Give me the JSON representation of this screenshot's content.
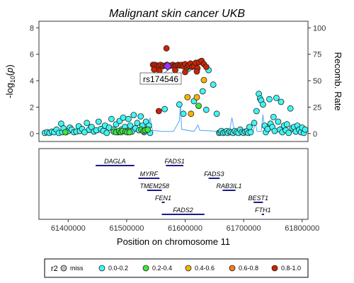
{
  "chart_data": {
    "type": "scatter",
    "title": "Malignant skin cancer UKB",
    "ylabel_left": "-log10(p)",
    "ylabel_right": "Recomb. Rate",
    "xlabel": "Position on chromosome 11",
    "xlim": [
      61350000,
      61810000
    ],
    "ylim_left": [
      -0.6,
      8.5
    ],
    "ylim_right": [
      -7.5,
      106.25
    ],
    "x_ticks": [
      61400000,
      61500000,
      61600000,
      61700000,
      61800000
    ],
    "x_tick_labels": [
      "61400000",
      "61500000",
      "61600000",
      "61700000",
      "61800000"
    ],
    "y_ticks_left": [
      0,
      2,
      4,
      6,
      8
    ],
    "y_ticks_right": [
      0,
      25,
      50,
      75,
      100
    ],
    "lead_snp": {
      "label": "rs174546",
      "x": 61570000,
      "y": 5.1,
      "color": "#9b30ff"
    },
    "legend": {
      "title": "r2",
      "items": [
        {
          "label": "miss",
          "color": "#bebebe"
        },
        {
          "label": "0.0-0.2",
          "color": "#3ff7f4"
        },
        {
          "label": "0.2-0.4",
          "color": "#3fe63f"
        },
        {
          "label": "0.4-0.6",
          "color": "#f7b500"
        },
        {
          "label": "0.6-0.8",
          "color": "#f37d1f"
        },
        {
          "label": "0.8-1.0",
          "color": "#cc2200"
        }
      ]
    },
    "recomb_rate": [
      [
        61355000,
        0.3
      ],
      [
        61400000,
        0.5
      ],
      [
        61450000,
        0.8
      ],
      [
        61500000,
        1.2
      ],
      [
        61536000,
        3.0
      ],
      [
        61540000,
        15.0
      ],
      [
        61544000,
        3.0
      ],
      [
        61560000,
        2.0
      ],
      [
        61580000,
        2.0
      ],
      [
        61590000,
        12.0
      ],
      [
        61592000,
        28.0
      ],
      [
        61594000,
        4.0
      ],
      [
        61615000,
        2.0
      ],
      [
        61622000,
        8.0
      ],
      [
        61625000,
        3.0
      ],
      [
        61660000,
        2.0
      ],
      [
        61676000,
        3.0
      ],
      [
        61680000,
        15.0
      ],
      [
        61684000,
        3.0
      ],
      [
        61700000,
        1.0
      ],
      [
        61716000,
        2.0
      ],
      [
        61720000,
        10.0
      ],
      [
        61723000,
        2.0
      ],
      [
        61730000,
        2.0
      ],
      [
        61733000,
        18.0
      ],
      [
        61736000,
        2.0
      ],
      [
        61745000,
        2.0
      ],
      [
        61748000,
        8.0
      ],
      [
        61752000,
        2.0
      ],
      [
        61805000,
        1.0
      ]
    ],
    "points": {
      "low_r2": [
        [
          61360000,
          0.05
        ],
        [
          61364000,
          0.1
        ],
        [
          61368000,
          0.05
        ],
        [
          61372000,
          0.15
        ],
        [
          61376000,
          0.1
        ],
        [
          61380000,
          0.3
        ],
        [
          61384000,
          0.05
        ],
        [
          61388000,
          0.75
        ],
        [
          61390000,
          0.1
        ],
        [
          61392000,
          0.4
        ],
        [
          61396000,
          0.1
        ],
        [
          61400000,
          0.2
        ],
        [
          61403000,
          0.45
        ],
        [
          61406000,
          0.3
        ],
        [
          61410000,
          0.1
        ],
        [
          61414000,
          0.15
        ],
        [
          61418000,
          0.55
        ],
        [
          61420000,
          0.2
        ],
        [
          61424000,
          0.35
        ],
        [
          61428000,
          0.1
        ],
        [
          61432000,
          0.8
        ],
        [
          61436000,
          0.3
        ],
        [
          61440000,
          0.5
        ],
        [
          61444000,
          0.15
        ],
        [
          61448000,
          0.25
        ],
        [
          61452000,
          0.9
        ],
        [
          61456000,
          0.35
        ],
        [
          61460000,
          0.2
        ],
        [
          61463000,
          0.6
        ],
        [
          61466000,
          0.05
        ],
        [
          61470000,
          0.45
        ],
        [
          61474000,
          1.1
        ],
        [
          61478000,
          0.3
        ],
        [
          61482000,
          0.7
        ],
        [
          61485000,
          0.1
        ],
        [
          61488000,
          0.95
        ],
        [
          61491000,
          0.3
        ],
        [
          61494000,
          1.2
        ],
        [
          61497000,
          0.5
        ],
        [
          61500000,
          0.2
        ],
        [
          61503000,
          1.1
        ],
        [
          61506000,
          0.6
        ],
        [
          61509000,
          0.15
        ],
        [
          61512000,
          1.4
        ],
        [
          61515000,
          0.4
        ],
        [
          61518000,
          0.8
        ],
        [
          61521000,
          0.25
        ],
        [
          61524000,
          1.3
        ],
        [
          61527000,
          0.6
        ],
        [
          61530000,
          0.1
        ],
        [
          61533000,
          0.9
        ],
        [
          61536000,
          0.35
        ],
        [
          61538000,
          0.6
        ],
        [
          61540000,
          0.05
        ],
        [
          61565000,
          1.85
        ],
        [
          61590000,
          2.2
        ],
        [
          61597000,
          1.5
        ],
        [
          61605000,
          4.9
        ],
        [
          61615000,
          2.45
        ],
        [
          61630000,
          3.2
        ],
        [
          61636000,
          1.8
        ],
        [
          61640000,
          4.8
        ],
        [
          61648000,
          3.7
        ],
        [
          61654000,
          1.5
        ],
        [
          61658000,
          0.05
        ],
        [
          61660000,
          0.1
        ],
        [
          61662000,
          0.2
        ],
        [
          61665000,
          0.05
        ],
        [
          61668000,
          0.1
        ],
        [
          61671000,
          0.2
        ],
        [
          61673000,
          0.05
        ],
        [
          61676000,
          0.15
        ],
        [
          61679000,
          0.1
        ],
        [
          61682000,
          0.05
        ],
        [
          61685000,
          0.2
        ],
        [
          61688000,
          0.1
        ],
        [
          61691000,
          0.05
        ],
        [
          61694000,
          0.3
        ],
        [
          61697000,
          0.1
        ],
        [
          61700000,
          0.05
        ],
        [
          61703000,
          0.15
        ],
        [
          61706000,
          0.2
        ],
        [
          61708000,
          0.05
        ],
        [
          61710000,
          0.5
        ],
        [
          61712000,
          0.1
        ],
        [
          61718000,
          0.8
        ],
        [
          61722000,
          1.7
        ],
        [
          61726000,
          3.0
        ],
        [
          61728000,
          2.65
        ],
        [
          61730000,
          2.5
        ],
        [
          61733000,
          2.2
        ],
        [
          61736000,
          0.6
        ],
        [
          61738000,
          0.1
        ],
        [
          61741000,
          0.35
        ],
        [
          61744000,
          2.6
        ],
        [
          61746000,
          0.75
        ],
        [
          61749000,
          0.5
        ],
        [
          61751000,
          1.25
        ],
        [
          61753000,
          0.2
        ],
        [
          61756000,
          2.7
        ],
        [
          61759000,
          0.9
        ],
        [
          61762000,
          0.3
        ],
        [
          61764000,
          2.4
        ],
        [
          61766000,
          0.1
        ],
        [
          61769000,
          0.6
        ],
        [
          61772000,
          0.25
        ],
        [
          61774000,
          0.7
        ],
        [
          61777000,
          0.05
        ],
        [
          61780000,
          1.9
        ],
        [
          61783000,
          0.4
        ],
        [
          61786000,
          0.5
        ],
        [
          61789000,
          0.15
        ],
        [
          61792000,
          0.6
        ],
        [
          61795000,
          0.3
        ],
        [
          61798000,
          0.1
        ],
        [
          61800000,
          0.45
        ],
        [
          61803000,
          0.05
        ],
        [
          61805000,
          0.3
        ]
      ],
      "mid_r2": [
        [
          61395000,
          0.1
        ],
        [
          61478000,
          0.15
        ],
        [
          61482000,
          0.1
        ],
        [
          61487000,
          0.2
        ],
        [
          61490000,
          0.1
        ],
        [
          61493000,
          0.2
        ],
        [
          61498000,
          0.15
        ],
        [
          61501000,
          0.1
        ],
        [
          61505000,
          0.1
        ],
        [
          61525000,
          0.3
        ],
        [
          61529000,
          0.2
        ],
        [
          61532000,
          0.25
        ],
        [
          61536000,
          0.3
        ],
        [
          61623000,
          2.1
        ]
      ],
      "high_orange": [
        [
          61604000,
          2.75
        ],
        [
          61610000,
          1.5
        ],
        [
          61620000,
          2.75
        ],
        [
          61632000,
          4.05
        ]
      ],
      "very_high": [
        [
          61555000,
          1.7
        ],
        [
          61568000,
          6.45
        ],
        [
          61545000,
          5.2
        ],
        [
          61548000,
          5.2
        ],
        [
          61552000,
          5.15
        ],
        [
          61555000,
          5.1
        ],
        [
          61558000,
          5.2
        ],
        [
          61562000,
          5.1
        ],
        [
          61566000,
          5.15
        ],
        [
          61569000,
          5.2
        ],
        [
          61572000,
          5.1
        ],
        [
          61576000,
          5.15
        ],
        [
          61579000,
          5.2
        ],
        [
          61582000,
          5.1
        ],
        [
          61585000,
          5.15
        ],
        [
          61588000,
          5.2
        ],
        [
          61591000,
          5.15
        ],
        [
          61594000,
          5.2
        ],
        [
          61597000,
          5.1
        ],
        [
          61600000,
          5.25
        ],
        [
          61603000,
          5.0
        ],
        [
          61606000,
          5.15
        ],
        [
          61609000,
          5.3
        ],
        [
          61612000,
          5.05
        ],
        [
          61615000,
          5.1
        ],
        [
          61618000,
          5.35
        ],
        [
          61621000,
          4.95
        ],
        [
          61624000,
          5.4
        ],
        [
          61628000,
          5.5
        ],
        [
          61632000,
          5.25
        ],
        [
          61636000,
          5.05
        ],
        [
          61620000,
          4.7
        ],
        [
          61547000,
          4.85
        ],
        [
          61556000,
          4.75
        ],
        [
          61583000,
          4.8
        ],
        [
          61600000,
          4.65
        ]
      ]
    },
    "genes": [
      {
        "name": "DAGLA",
        "start": 61447000,
        "end": 61513000,
        "row": 0
      },
      {
        "name": "FADS1",
        "start": 61567000,
        "end": 61597000,
        "row": 0
      },
      {
        "name": "MYRF",
        "start": 61520000,
        "end": 61556000,
        "row": 1
      },
      {
        "name": "FADS3",
        "start": 61640000,
        "end": 61659000,
        "row": 1
      },
      {
        "name": "TMEM258",
        "start": 61535000,
        "end": 61560000,
        "row": 2
      },
      {
        "name": "RAB3IL1",
        "start": 61664000,
        "end": 61686000,
        "row": 2
      },
      {
        "name": "FEN1",
        "start": 61560000,
        "end": 61565000,
        "row": 3
      },
      {
        "name": "BEST1",
        "start": 61717000,
        "end": 61733000,
        "row": 3
      },
      {
        "name": "FADS2",
        "start": 61560000,
        "end": 61633000,
        "row": 4
      },
      {
        "name": "FTH1",
        "start": 61731000,
        "end": 61735000,
        "row": 4
      }
    ]
  }
}
